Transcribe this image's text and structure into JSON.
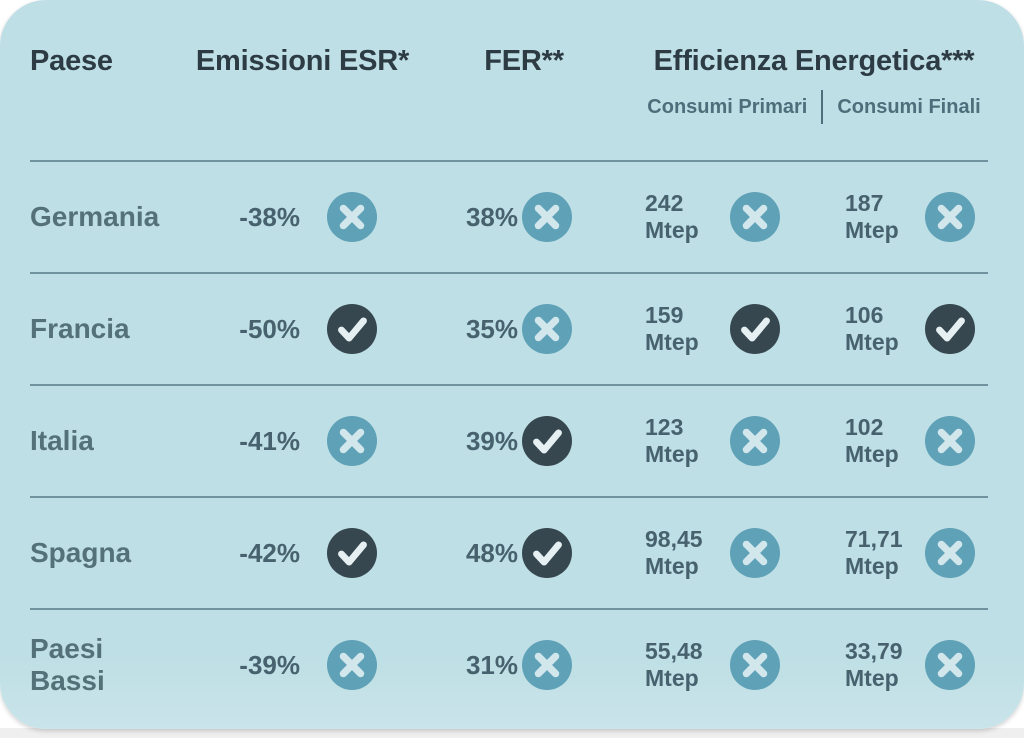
{
  "chart_data": {
    "type": "table",
    "columns": {
      "paese": "Paese",
      "emissioni_esr": "Emissioni ESR*",
      "fer": "FER**",
      "efficienza_energetica": "Efficienza Energetica***",
      "consumi_primari": "Consumi Primari",
      "consumi_finali": "Consumi Finali"
    },
    "rows": [
      {
        "paese": "Germania",
        "emissioni_esr": {
          "value": "-38%",
          "target_met": false
        },
        "fer": {
          "value": "38%",
          "target_met": false
        },
        "consumi_primari": {
          "value": "242",
          "unit": "Mtep",
          "target_met": false
        },
        "consumi_finali": {
          "value": "187",
          "unit": "Mtep",
          "target_met": false
        }
      },
      {
        "paese": "Francia",
        "emissioni_esr": {
          "value": "-50%",
          "target_met": true
        },
        "fer": {
          "value": "35%",
          "target_met": false
        },
        "consumi_primari": {
          "value": "159",
          "unit": "Mtep",
          "target_met": true
        },
        "consumi_finali": {
          "value": "106",
          "unit": "Mtep",
          "target_met": true
        }
      },
      {
        "paese": "Italia",
        "emissioni_esr": {
          "value": "-41%",
          "target_met": false
        },
        "fer": {
          "value": "39%",
          "target_met": true
        },
        "consumi_primari": {
          "value": "123",
          "unit": "Mtep",
          "target_met": false
        },
        "consumi_finali": {
          "value": "102",
          "unit": "Mtep",
          "target_met": false
        }
      },
      {
        "paese": "Spagna",
        "emissioni_esr": {
          "value": "-42%",
          "target_met": true
        },
        "fer": {
          "value": "48%",
          "target_met": true
        },
        "consumi_primari": {
          "value": "98,45",
          "unit": "Mtep",
          "target_met": false
        },
        "consumi_finali": {
          "value": "71,71",
          "unit": "Mtep",
          "target_met": false
        }
      },
      {
        "paese": "Paesi Bassi",
        "emissioni_esr": {
          "value": "-39%",
          "target_met": false
        },
        "fer": {
          "value": "31%",
          "target_met": false
        },
        "consumi_primari": {
          "value": "55,48",
          "unit": "Mtep",
          "target_met": false
        },
        "consumi_finali": {
          "value": "33,79",
          "unit": "Mtep",
          "target_met": false
        }
      }
    ]
  },
  "icons": {
    "check": "check-icon",
    "cross": "cross-icon"
  },
  "colors": {
    "card_background": "#bedfe5",
    "header_text": "#2d3c44",
    "subheader_text": "#4d6f7b",
    "country_text": "#54717a",
    "value_text": "#47626e",
    "divider": "#6e929e",
    "cross_circle": "#5fa1b7",
    "cross_glyph": "#d2e7ec",
    "check_circle": "#36474f",
    "check_glyph": "#e6f0f3"
  }
}
